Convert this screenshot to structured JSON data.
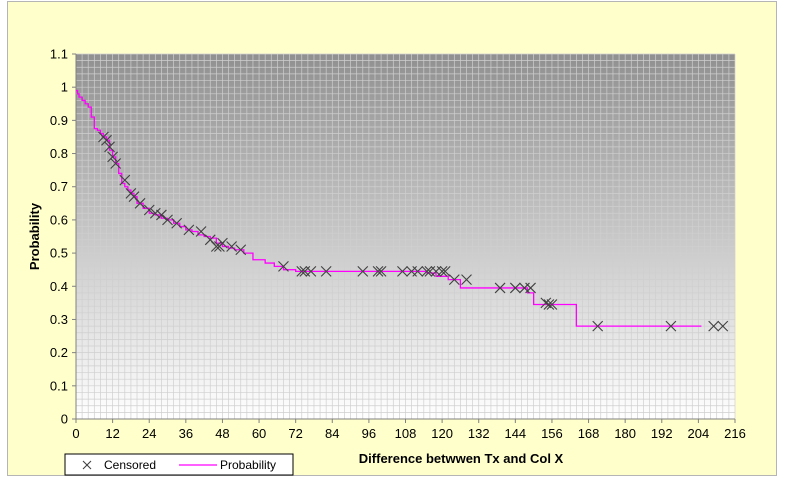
{
  "chart_data": {
    "type": "line",
    "title": "",
    "xlabel": "Difference betwwen Tx and Col X",
    "ylabel": "Probability",
    "xlim": [
      0,
      216
    ],
    "ylim": [
      0,
      1.1
    ],
    "x_ticks": [
      0,
      12,
      24,
      36,
      48,
      60,
      72,
      84,
      96,
      108,
      120,
      132,
      144,
      156,
      168,
      180,
      192,
      204,
      216
    ],
    "x_tick_labels": [
      "0",
      "12",
      "24",
      "36",
      "48",
      "60",
      "72",
      "84",
      "96",
      "108",
      "120",
      "132",
      "144",
      "156",
      "168",
      "180",
      "192",
      "204",
      "216"
    ],
    "y_ticks": [
      0,
      0.1,
      0.2,
      0.3,
      0.4,
      0.5,
      0.6,
      0.7,
      0.8,
      0.9,
      1,
      1.1
    ],
    "y_tick_labels": [
      "0",
      "0.1",
      "0.2",
      "0.3",
      "0.4",
      "0.5",
      "0.6",
      "0.7",
      "0.8",
      "0.9",
      "1",
      "1.1"
    ],
    "grid": true,
    "legend_position": "bottom-left",
    "colors": {
      "probability": "#ff00ff",
      "censored": "#404040",
      "plot_top": "#909090",
      "plot_bottom": "#ffffff",
      "grid": "#cfcfcf",
      "chart_bg": "#ffffcc"
    },
    "series": [
      {
        "name": "Probability",
        "kind": "step",
        "x": [
          0,
          0.5,
          1,
          2,
          3,
          4,
          5,
          6,
          7,
          8,
          9,
          10,
          11,
          12,
          13,
          14,
          15,
          16,
          17,
          18,
          19,
          20,
          22,
          24,
          26,
          28,
          30,
          32,
          34,
          36,
          38,
          40,
          42,
          44,
          46,
          48,
          50,
          52,
          55,
          58,
          62,
          65,
          68,
          72,
          100,
          110,
          115,
          118,
          122,
          126,
          140,
          148,
          150,
          158,
          164,
          170,
          205
        ],
        "y": [
          0.99,
          0.98,
          0.97,
          0.96,
          0.95,
          0.94,
          0.91,
          0.875,
          0.87,
          0.86,
          0.85,
          0.84,
          0.81,
          0.79,
          0.77,
          0.74,
          0.71,
          0.7,
          0.69,
          0.68,
          0.67,
          0.65,
          0.635,
          0.62,
          0.615,
          0.605,
          0.6,
          0.59,
          0.58,
          0.57,
          0.565,
          0.555,
          0.55,
          0.545,
          0.53,
          0.52,
          0.515,
          0.51,
          0.5,
          0.48,
          0.47,
          0.46,
          0.45,
          0.445,
          0.445,
          0.445,
          0.44,
          0.43,
          0.42,
          0.395,
          0.395,
          0.38,
          0.345,
          0.345,
          0.28,
          0.28,
          0.28
        ]
      },
      {
        "name": "Censored",
        "kind": "marker",
        "x": [
          9,
          10,
          11,
          12,
          13,
          16,
          18,
          19,
          21,
          24,
          26,
          28,
          30,
          33,
          37,
          41,
          44,
          46,
          47,
          48,
          51,
          54,
          68,
          74,
          75,
          77,
          82,
          94,
          99,
          100,
          107,
          110,
          112,
          115,
          116,
          118,
          120,
          121,
          124,
          128,
          139,
          144,
          147,
          149,
          154,
          155,
          156,
          171,
          195,
          209,
          212
        ],
        "y": [
          0.85,
          0.84,
          0.82,
          0.79,
          0.77,
          0.72,
          0.68,
          0.67,
          0.65,
          0.63,
          0.62,
          0.615,
          0.6,
          0.59,
          0.57,
          0.565,
          0.54,
          0.52,
          0.52,
          0.53,
          0.52,
          0.51,
          0.46,
          0.445,
          0.445,
          0.445,
          0.445,
          0.445,
          0.445,
          0.445,
          0.445,
          0.445,
          0.445,
          0.445,
          0.445,
          0.445,
          0.445,
          0.445,
          0.42,
          0.42,
          0.395,
          0.395,
          0.395,
          0.395,
          0.35,
          0.345,
          0.345,
          0.28,
          0.28,
          0.28,
          0.28
        ]
      }
    ]
  }
}
